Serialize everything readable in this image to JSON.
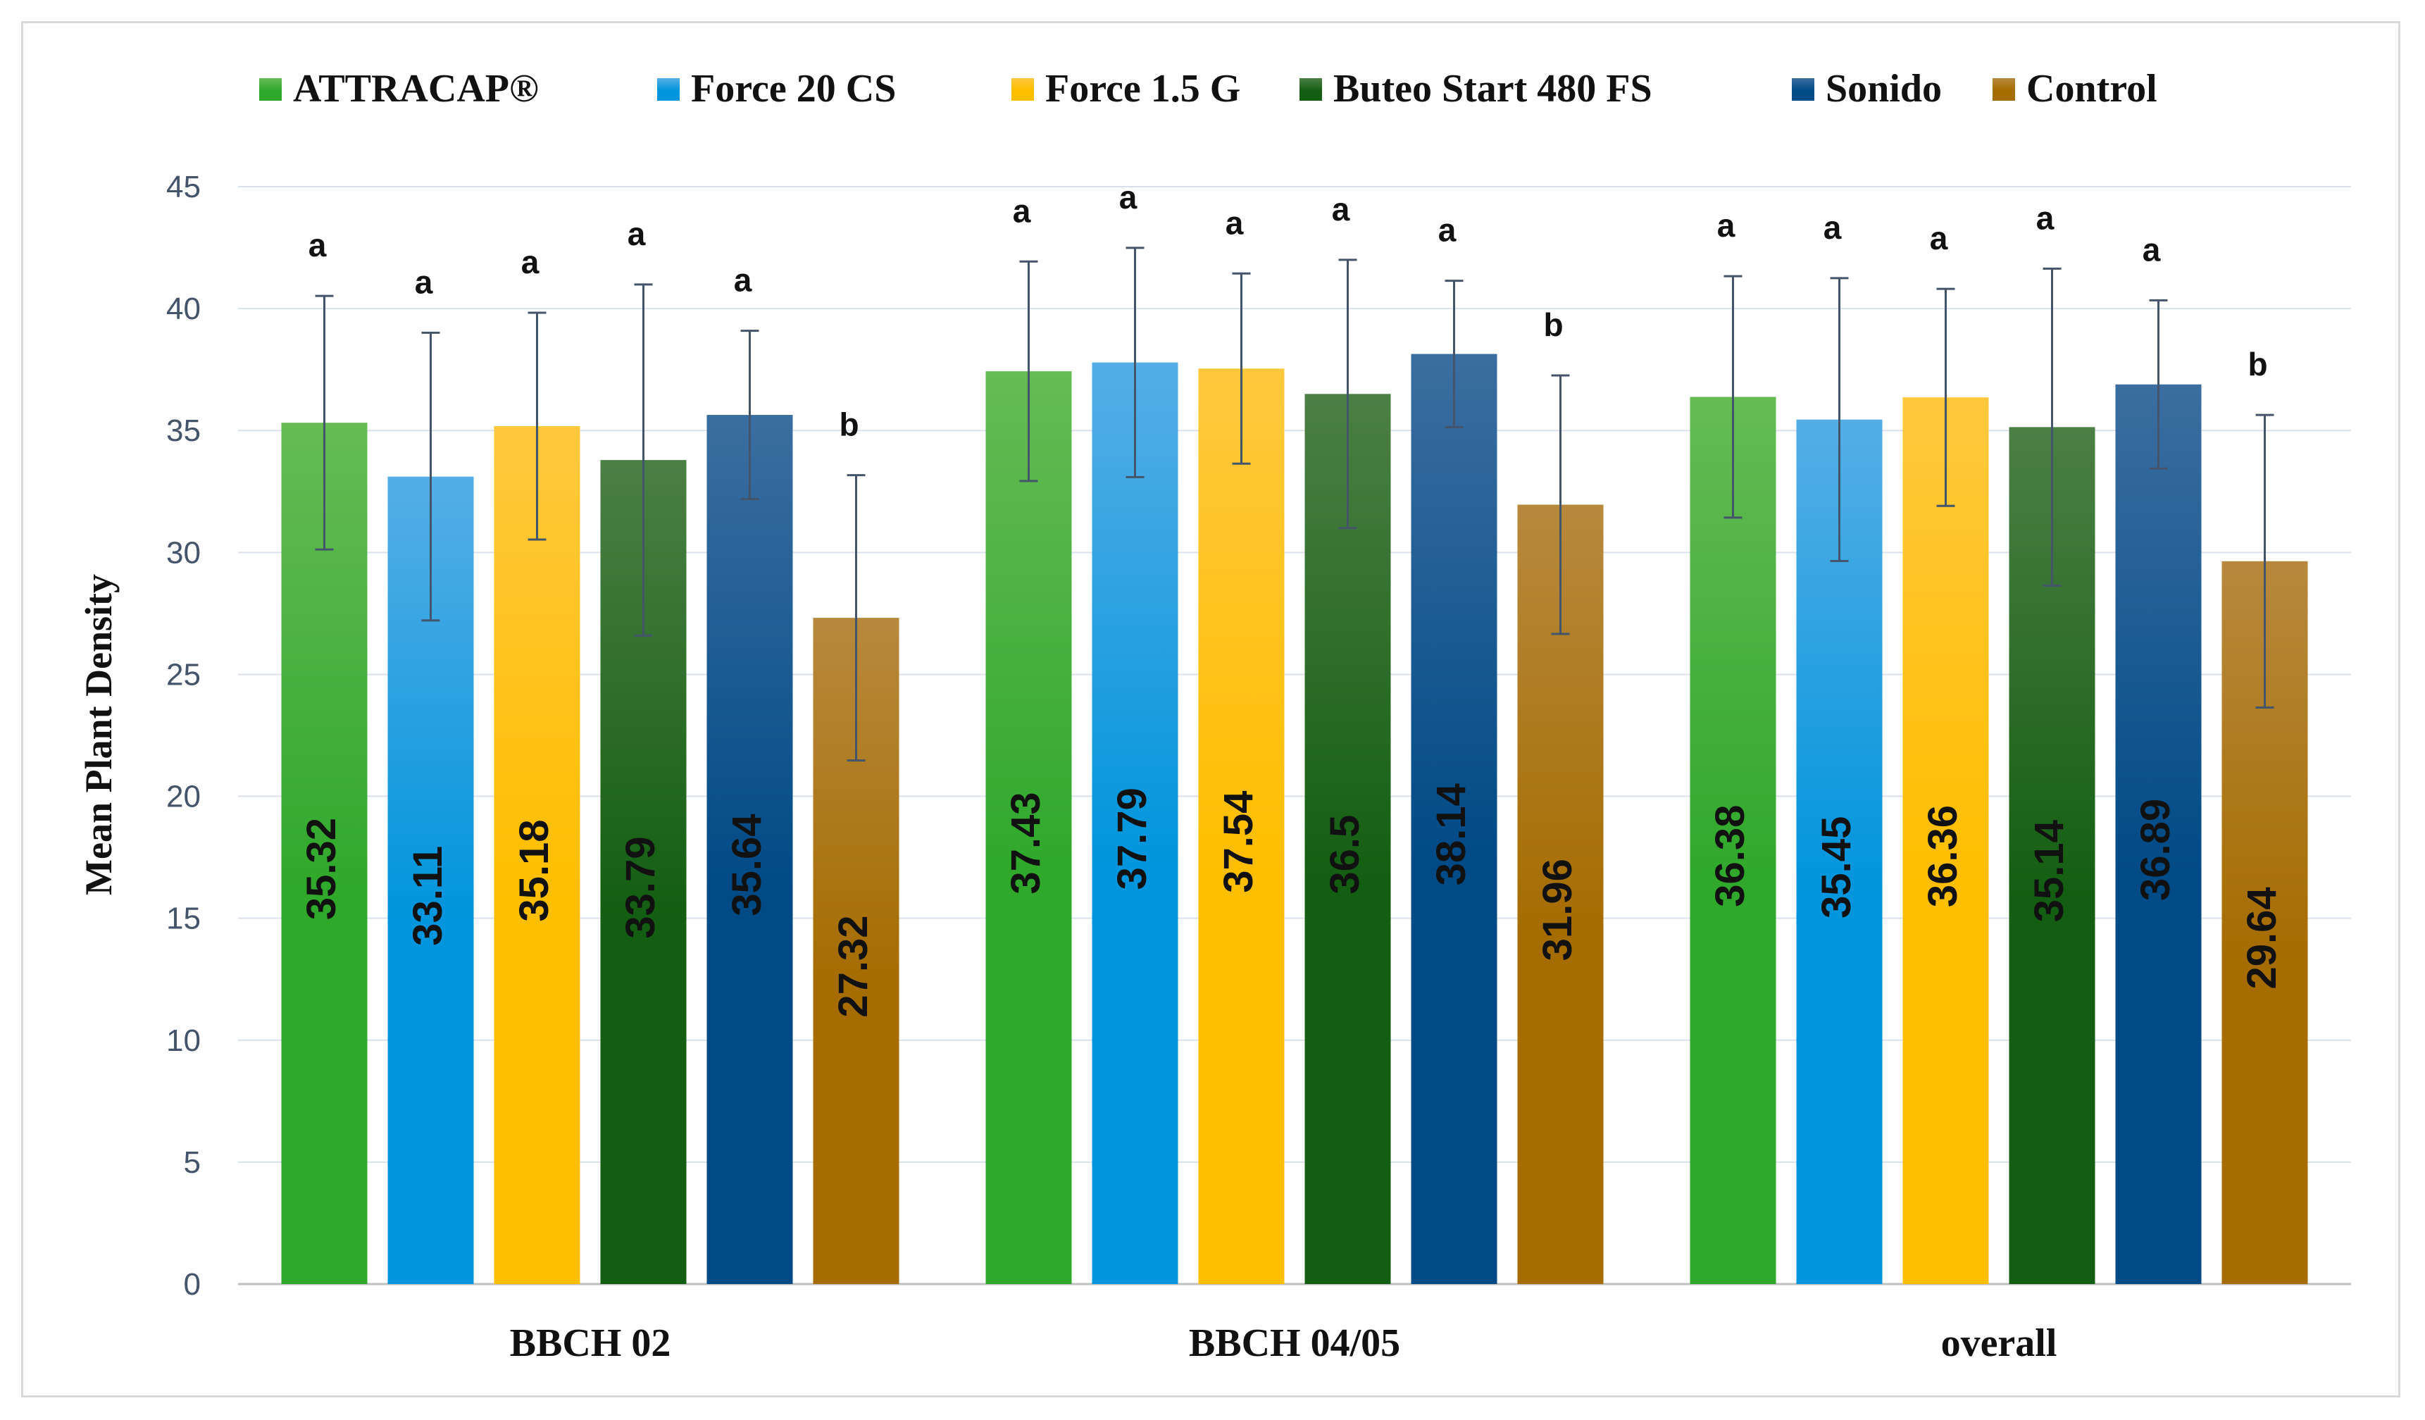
{
  "chart_data": {
    "type": "bar",
    "title": "",
    "xlabel": "",
    "ylabel": "Mean Plant Density",
    "ylim": [
      0,
      45
    ],
    "yticks": [
      0,
      5,
      10,
      15,
      20,
      25,
      30,
      35,
      40,
      45
    ],
    "grid": true,
    "legend_position": "top",
    "categories": [
      "BBCH 02",
      "BBCH 04/05",
      "overall"
    ],
    "series": [
      {
        "name": "ATTRACAP®",
        "color_top": "#66bb55",
        "color_bottom": "#2fa82b",
        "values": [
          35.32,
          37.43,
          36.38
        ],
        "error": [
          5.2,
          4.5,
          4.95
        ],
        "letters": [
          "a",
          "a",
          "a"
        ]
      },
      {
        "name": "Force 20 CS",
        "color_top": "#55aee6",
        "color_bottom": "#0095dc",
        "values": [
          33.11,
          37.79,
          35.45
        ],
        "error": [
          5.9,
          4.7,
          5.8
        ],
        "letters": [
          "a",
          "a",
          "a"
        ]
      },
      {
        "name": "Force 1.5 G",
        "color_top": "#ffc83d",
        "color_bottom": "#ffbe00",
        "values": [
          35.18,
          37.54,
          36.36
        ],
        "error": [
          4.65,
          3.9,
          4.45
        ],
        "letters": [
          "a",
          "a",
          "a"
        ]
      },
      {
        "name": "Buteo Start 480 FS",
        "color_top": "#4c7f45",
        "color_bottom": "#135e12",
        "values": [
          33.79,
          36.5,
          35.14
        ],
        "error": [
          7.2,
          5.5,
          6.5
        ],
        "letters": [
          "a",
          "a",
          "a"
        ]
      },
      {
        "name": "Sonido",
        "color_top": "#3b6ea0",
        "color_bottom": "#004a86",
        "values": [
          35.64,
          38.14,
          36.89
        ],
        "error": [
          3.45,
          3.0,
          3.45
        ],
        "letters": [
          "a",
          "a",
          "a"
        ]
      },
      {
        "name": "Control",
        "color_top": "#b7893d",
        "color_bottom": "#a56c00",
        "values": [
          27.32,
          31.96,
          29.64
        ],
        "error": [
          5.85,
          5.3,
          6.0
        ],
        "letters": [
          "b",
          "b",
          "b"
        ]
      }
    ],
    "colors": {
      "grid": "#d9e1ee",
      "axis": "#bfbfbf",
      "error_bar": "#44546a",
      "tick_text": "#44546a"
    }
  }
}
